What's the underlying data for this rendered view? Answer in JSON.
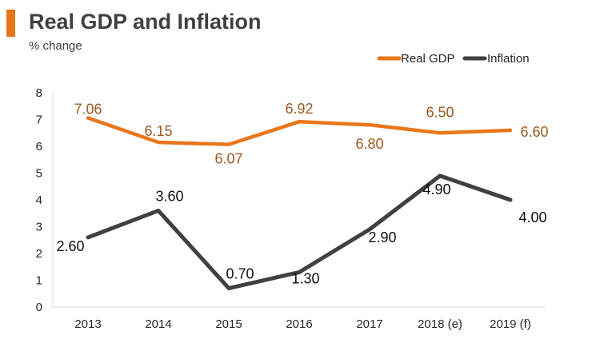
{
  "header": {
    "title": "Real GDP and Inflation",
    "subtitle": "% change"
  },
  "chart_data": {
    "type": "line",
    "title": "Real GDP and Inflation",
    "ylabel": "% change",
    "xlabel": "",
    "categories": [
      "2013",
      "2014",
      "2015",
      "2016",
      "2017",
      "2018 (e)",
      "2019 (f)"
    ],
    "yticks": [
      "0",
      "1",
      "2",
      "3",
      "4",
      "5",
      "6",
      "7",
      "8"
    ],
    "ylim": [
      0,
      8
    ],
    "grid": false,
    "legend": "top-right",
    "series": [
      {
        "name": "Real GDP",
        "color": "#e8761b",
        "label_color": "#9c5a1f",
        "values": [
          7.06,
          6.15,
          6.07,
          6.92,
          6.8,
          6.5,
          6.6
        ],
        "labels": [
          "7.06",
          "6.15",
          "6.07",
          "6.92",
          "6.80",
          "6.50",
          "6.60"
        ]
      },
      {
        "name": "Inflation",
        "color": "#404040",
        "label_color": "#111111",
        "values": [
          2.6,
          3.6,
          0.7,
          1.3,
          2.9,
          4.9,
          4.0
        ],
        "labels": [
          "2.60",
          "3.60",
          "0.70",
          "1.30",
          "2.90",
          "4.90",
          "4.00"
        ]
      }
    ]
  }
}
